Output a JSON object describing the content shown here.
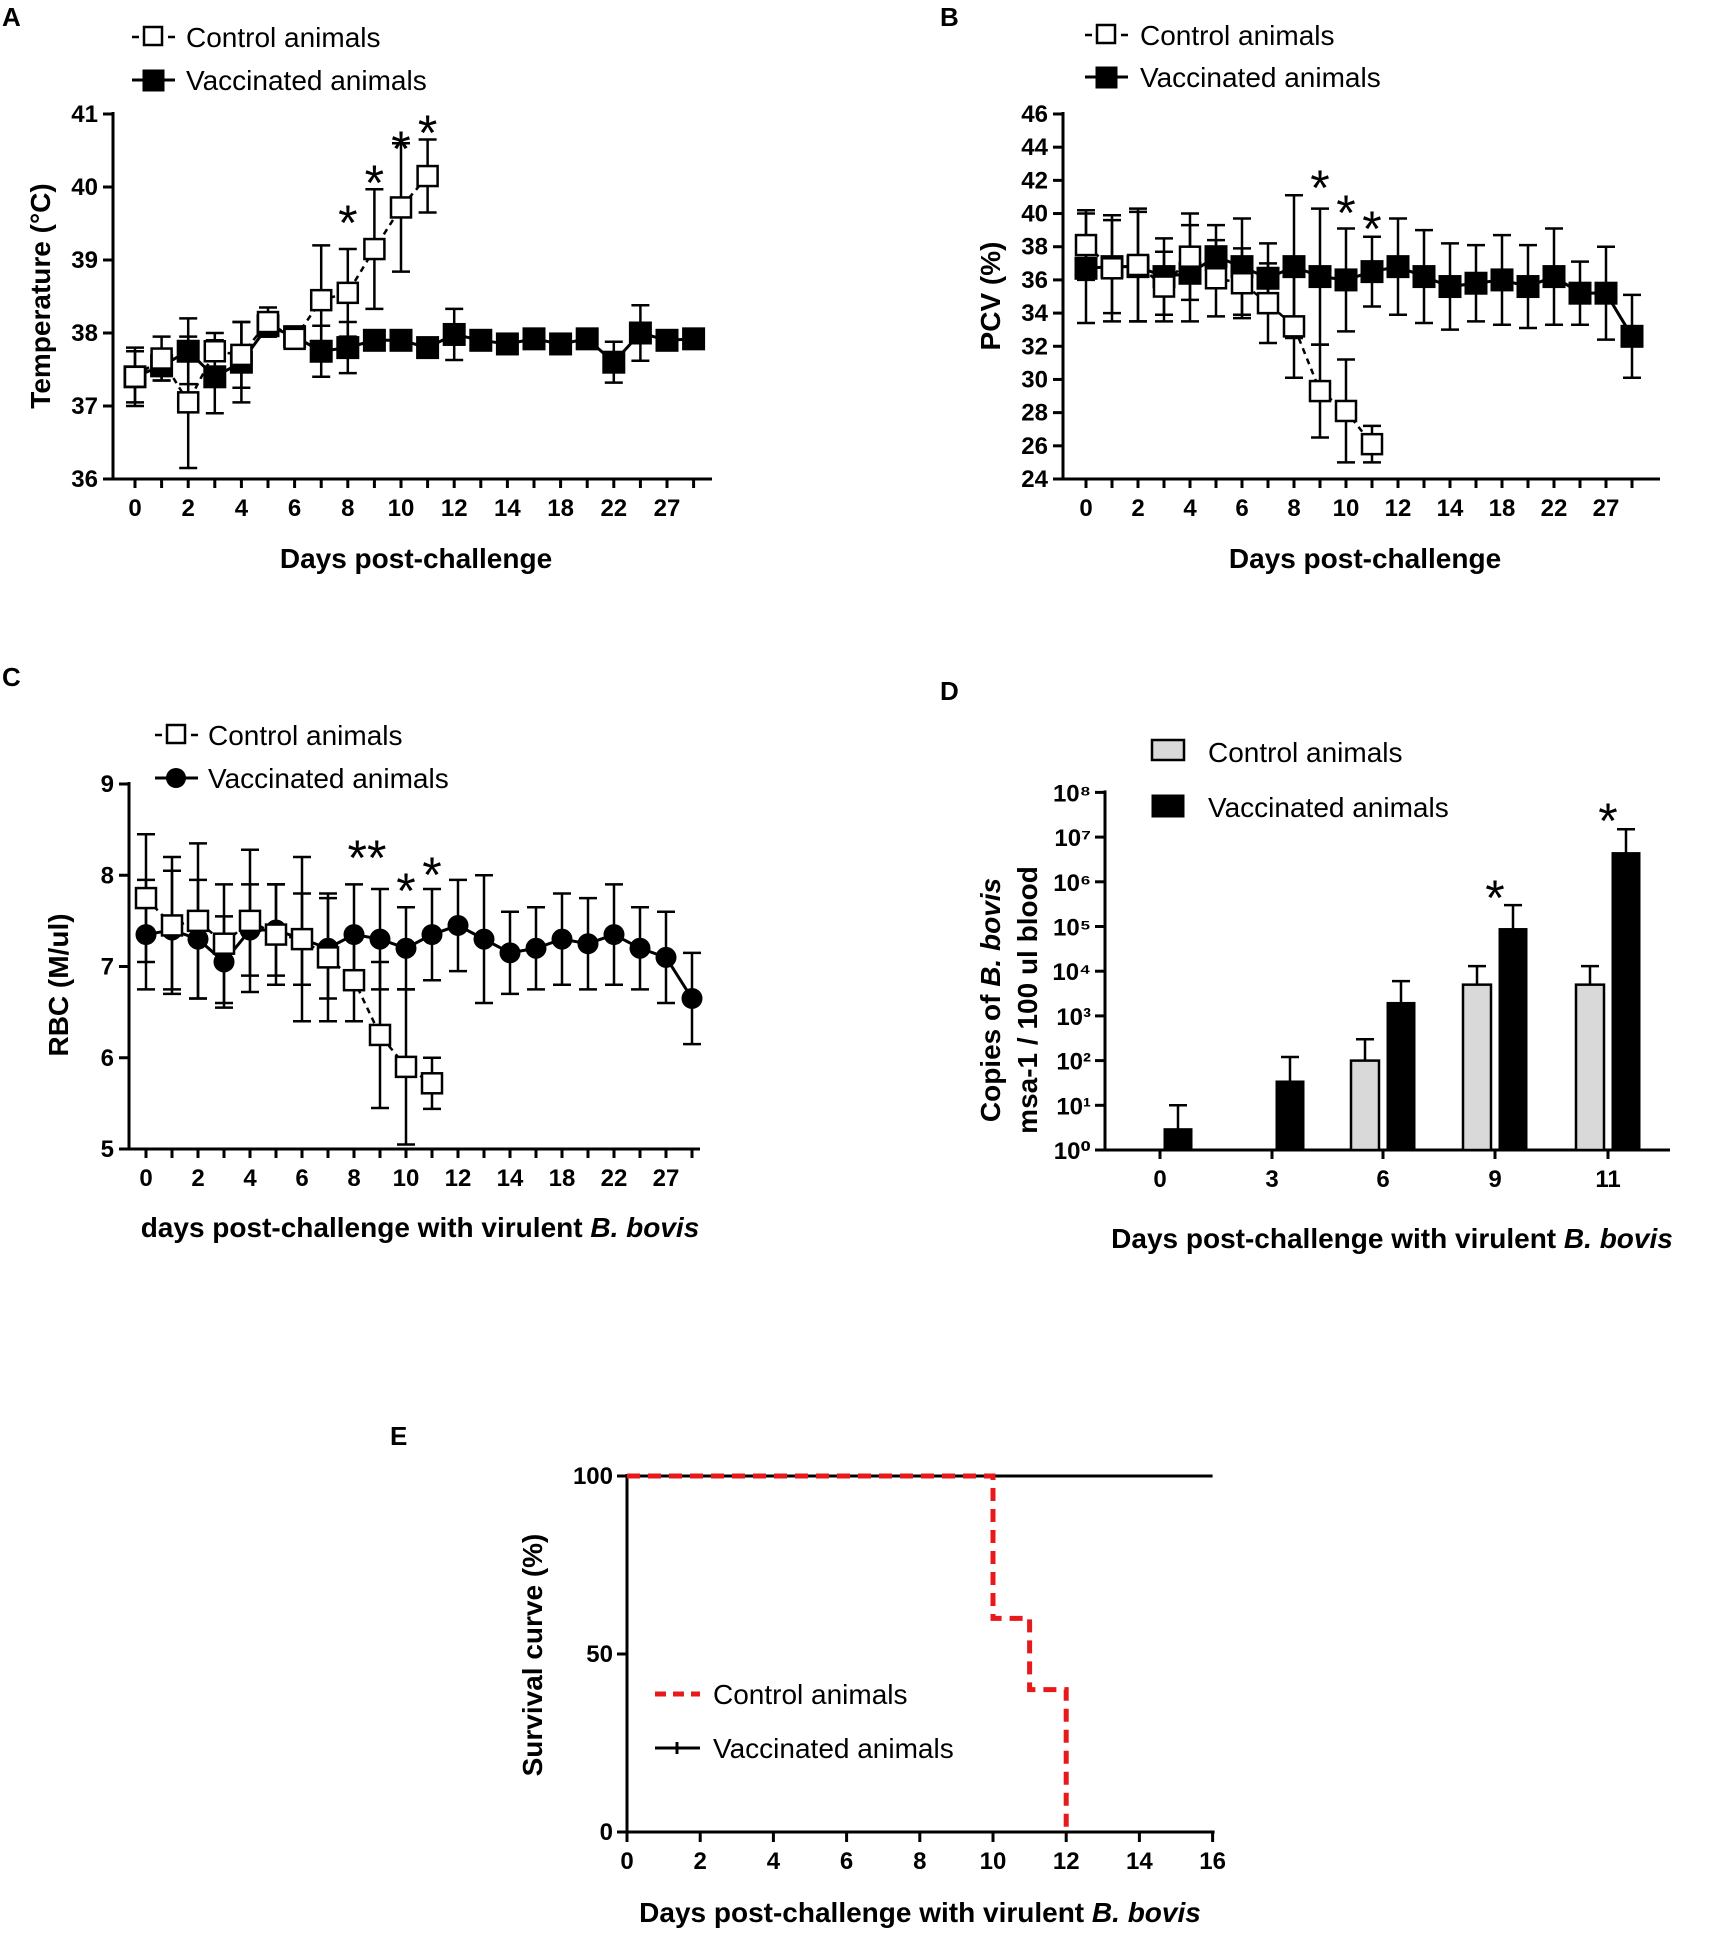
{
  "chart_data": [
    {
      "panel": "A",
      "type": "line",
      "xlabel": "Days post-challenge",
      "ylabel": "Temperature (°C)",
      "ylim": [
        36,
        41
      ],
      "yticks": [
        36,
        37,
        38,
        39,
        40,
        41
      ],
      "xtick_labels": [
        "0",
        "2",
        "4",
        "6",
        "8",
        "10",
        "12",
        "14",
        "18",
        "22",
        "27"
      ],
      "legend": [
        "Control animals",
        "Vaccinated animals"
      ],
      "significance_marks": [
        {
          "label": "*",
          "x": 8
        },
        {
          "label": "*",
          "x": 9
        },
        {
          "label": "*",
          "x": 10
        },
        {
          "label": "*",
          "x": 11
        }
      ],
      "series": [
        {
          "name": "Control animals",
          "marker": "open-square",
          "x": [
            0,
            1,
            2,
            3,
            4,
            5,
            6,
            7,
            8,
            9,
            10,
            11
          ],
          "values": [
            37.4,
            37.65,
            37.05,
            37.75,
            37.7,
            38.15,
            37.92,
            38.45,
            38.55,
            39.15,
            39.72,
            40.15
          ],
          "errors": [
            0.35,
            0.3,
            0.9,
            0.25,
            0.45,
            0.2,
            0.1,
            0.75,
            0.6,
            0.82,
            0.88,
            0.5
          ]
        },
        {
          "name": "Vaccinated animals",
          "marker": "filled-square",
          "x": [
            0,
            1,
            2,
            3,
            4,
            5,
            6,
            7,
            8,
            9,
            10,
            11,
            12,
            13,
            14,
            15,
            16,
            17,
            18,
            19,
            20,
            21
          ],
          "values": [
            37.4,
            37.55,
            37.75,
            37.4,
            37.6,
            38.1,
            37.95,
            37.75,
            37.8,
            37.9,
            37.9,
            37.8,
            37.98,
            37.9,
            37.85,
            37.92,
            37.85,
            37.92,
            37.6,
            38.0,
            37.9,
            37.92
          ],
          "errors": [
            0.4,
            0.2,
            0.45,
            0.5,
            0.55,
            0.15,
            0.1,
            0.35,
            0.35,
            0.1,
            0.1,
            0.1,
            0.35,
            0.1,
            0.1,
            0.1,
            0.12,
            0.1,
            0.28,
            0.38,
            0.1,
            0.1
          ]
        }
      ]
    },
    {
      "panel": "B",
      "type": "line",
      "xlabel": "Days post-challenge",
      "ylabel": "PCV (%)",
      "ylim": [
        24,
        46
      ],
      "yticks": [
        24,
        26,
        28,
        30,
        32,
        34,
        36,
        38,
        40,
        42,
        44,
        46
      ],
      "xtick_labels": [
        "0",
        "2",
        "4",
        "6",
        "8",
        "10",
        "12",
        "14",
        "18",
        "22",
        "27"
      ],
      "legend": [
        "Control animals",
        "Vaccinated animals"
      ],
      "significance_marks": [
        {
          "label": "*",
          "x": 9
        },
        {
          "label": "*",
          "x": 10
        },
        {
          "label": "*",
          "x": 11
        }
      ],
      "series": [
        {
          "name": "Control animals",
          "marker": "open-square",
          "x": [
            0,
            1,
            2,
            3,
            4,
            5,
            6,
            7,
            8,
            9,
            10,
            11
          ],
          "values": [
            38.1,
            36.7,
            36.9,
            35.6,
            37.4,
            36.1,
            35.8,
            34.6,
            33.2,
            29.3,
            28.1,
            26.1
          ],
          "errors": [
            2.1,
            3.2,
            3.4,
            2.1,
            2.6,
            2.3,
            2.1,
            2.4,
            3.1,
            2.8,
            3.1,
            1.1
          ]
        },
        {
          "name": "Vaccinated animals",
          "marker": "filled-square",
          "x": [
            0,
            1,
            2,
            3,
            4,
            5,
            6,
            7,
            8,
            9,
            10,
            11,
            12,
            13,
            14,
            15,
            16,
            17,
            18,
            19,
            20,
            21
          ],
          "values": [
            36.7,
            36.8,
            36.8,
            36.2,
            36.4,
            37.4,
            36.8,
            36.1,
            36.8,
            36.2,
            36.0,
            36.5,
            36.8,
            36.2,
            35.6,
            35.8,
            36.0,
            35.6,
            36.2,
            35.2,
            35.2,
            32.6
          ],
          "errors": [
            3.3,
            2.8,
            3.3,
            2.3,
            2.9,
            1.9,
            2.9,
            2.1,
            4.3,
            4.1,
            3.1,
            2.1,
            2.9,
            2.8,
            2.6,
            2.3,
            2.7,
            2.5,
            2.9,
            1.9,
            2.8,
            2.5
          ]
        }
      ]
    },
    {
      "panel": "C",
      "type": "line",
      "xlabel": "days post-challenge with virulent",
      "xlabel_italic": "B. bovis",
      "ylabel": "RBC (M/ul)",
      "ylim": [
        5,
        9
      ],
      "yticks": [
        5,
        6,
        7,
        8,
        9
      ],
      "xtick_labels": [
        "0",
        "2",
        "4",
        "6",
        "8",
        "10",
        "12",
        "14",
        "18",
        "22",
        "27"
      ],
      "legend": [
        "Control animals",
        "Vaccinated animals"
      ],
      "significance_marks": [
        {
          "label": "**",
          "x": 8.5
        },
        {
          "label": "*",
          "x": 10
        },
        {
          "label": "*",
          "x": 11
        }
      ],
      "series": [
        {
          "name": "Control animals",
          "marker": "open-square",
          "x": [
            0,
            1,
            2,
            3,
            4,
            5,
            6,
            7,
            8,
            9,
            10,
            11
          ],
          "values": [
            7.75,
            7.45,
            7.5,
            7.25,
            7.5,
            7.35,
            7.3,
            7.1,
            6.85,
            6.25,
            5.9,
            5.72
          ],
          "errors": [
            0.7,
            0.75,
            0.85,
            0.65,
            0.78,
            0.55,
            0.9,
            0.7,
            0.45,
            0.8,
            0.85,
            0.28
          ]
        },
        {
          "name": "Vaccinated animals",
          "marker": "filled-circle",
          "x": [
            0,
            1,
            2,
            3,
            4,
            5,
            6,
            7,
            8,
            9,
            10,
            11,
            12,
            13,
            14,
            15,
            16,
            17,
            18,
            19,
            20,
            21
          ],
          "values": [
            7.35,
            7.4,
            7.3,
            7.05,
            7.4,
            7.4,
            7.3,
            7.2,
            7.35,
            7.3,
            7.2,
            7.35,
            7.45,
            7.3,
            7.15,
            7.2,
            7.3,
            7.25,
            7.35,
            7.2,
            7.1,
            6.65
          ],
          "errors": [
            0.6,
            0.65,
            0.65,
            0.5,
            0.5,
            0.5,
            0.5,
            0.55,
            0.55,
            0.55,
            0.45,
            0.5,
            0.5,
            0.7,
            0.45,
            0.45,
            0.5,
            0.5,
            0.55,
            0.45,
            0.5,
            0.5
          ]
        }
      ]
    },
    {
      "panel": "D",
      "type": "bar",
      "scale": "log10",
      "xlabel": "Days post-challenge with virulent",
      "xlabel_italic": "B. bovis",
      "ylabel_line1": "Copies of",
      "ylabel_line1_italic": "B. bovis",
      "ylabel_line2": "msa-1 / 100 ul blood",
      "ylim_exponent": [
        0,
        8
      ],
      "ytick_labels": [
        "10⁰",
        "10¹",
        "10²",
        "10³",
        "10⁴",
        "10⁵",
        "10⁶",
        "10⁷",
        "10⁸"
      ],
      "categories": [
        "0",
        "3",
        "6",
        "9",
        "11"
      ],
      "legend": [
        "Control animals",
        "Vaccinated animals"
      ],
      "significance_marks": [
        {
          "label": "*",
          "category": "9"
        },
        {
          "label": "*",
          "category": "11"
        }
      ],
      "series": [
        {
          "name": "Control animals",
          "values": [
            null,
            null,
            100,
            5000,
            5000
          ],
          "upper_error": [
            null,
            null,
            300,
            13000,
            13000
          ]
        },
        {
          "name": "Vaccinated animals",
          "values": [
            3,
            35,
            2000,
            90000,
            4500000
          ],
          "upper_error": [
            10,
            120,
            6000,
            300000,
            15000000
          ]
        }
      ]
    },
    {
      "panel": "E",
      "type": "line",
      "style": "step",
      "xlabel": "Days post-challenge with virulent",
      "xlabel_italic": "B. bovis",
      "ylabel": "Survival curve (%)",
      "xlim": [
        0,
        16
      ],
      "ylim": [
        0,
        100
      ],
      "xticks": [
        0,
        2,
        4,
        6,
        8,
        10,
        12,
        14,
        16
      ],
      "yticks": [
        0,
        50,
        100
      ],
      "legend": [
        "Control animals",
        "Vaccinated animals"
      ],
      "series": [
        {
          "name": "Control animals",
          "color": "#e8191b",
          "x": [
            0,
            10,
            10,
            11,
            11,
            12,
            12
          ],
          "values": [
            100,
            100,
            60,
            60,
            40,
            40,
            0
          ]
        },
        {
          "name": "Vaccinated animals",
          "color": "#000000",
          "x": [
            0,
            16
          ],
          "values": [
            100,
            100
          ]
        }
      ]
    }
  ]
}
